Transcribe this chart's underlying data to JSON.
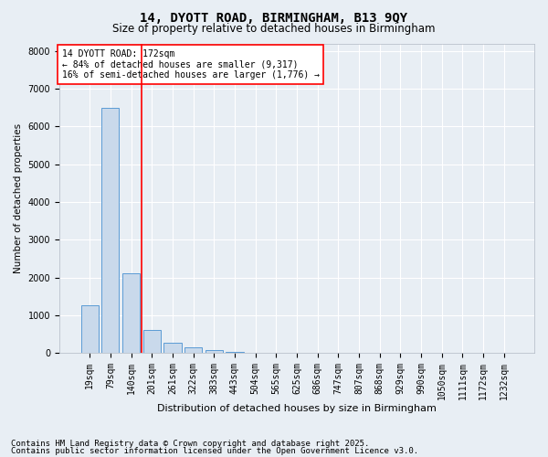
{
  "title": "14, DYOTT ROAD, BIRMINGHAM, B13 9QY",
  "subtitle": "Size of property relative to detached houses in Birmingham",
  "xlabel": "Distribution of detached houses by size in Birmingham",
  "ylabel": "Number of detached properties",
  "categories": [
    "19sqm",
    "79sqm",
    "140sqm",
    "201sqm",
    "261sqm",
    "322sqm",
    "383sqm",
    "443sqm",
    "504sqm",
    "565sqm",
    "625sqm",
    "686sqm",
    "747sqm",
    "807sqm",
    "868sqm",
    "929sqm",
    "990sqm",
    "1050sqm",
    "1111sqm",
    "1172sqm",
    "1232sqm"
  ],
  "values": [
    1250,
    6500,
    2100,
    600,
    280,
    150,
    80,
    30,
    10,
    5,
    2,
    1,
    1,
    0,
    0,
    0,
    0,
    0,
    0,
    0,
    0
  ],
  "bar_color": "#c9d9eb",
  "bar_edge_color": "#5b9bd5",
  "vline_color": "red",
  "vline_pos": 2.5,
  "annotation_text": "14 DYOTT ROAD: 172sqm\n← 84% of detached houses are smaller (9,317)\n16% of semi-detached houses are larger (1,776) →",
  "annotation_box_color": "white",
  "annotation_box_edge": "red",
  "ylim": [
    0,
    8200
  ],
  "yticks": [
    0,
    1000,
    2000,
    3000,
    4000,
    5000,
    6000,
    7000,
    8000
  ],
  "footer1": "Contains HM Land Registry data © Crown copyright and database right 2025.",
  "footer2": "Contains public sector information licensed under the Open Government Licence v3.0.",
  "bg_color": "#e8eef4",
  "plot_bg_color": "#e8eef4",
  "title_fontsize": 10,
  "subtitle_fontsize": 8.5,
  "tick_fontsize": 7,
  "ylabel_fontsize": 7.5,
  "xlabel_fontsize": 8,
  "annotation_fontsize": 7,
  "footer_fontsize": 6.5
}
